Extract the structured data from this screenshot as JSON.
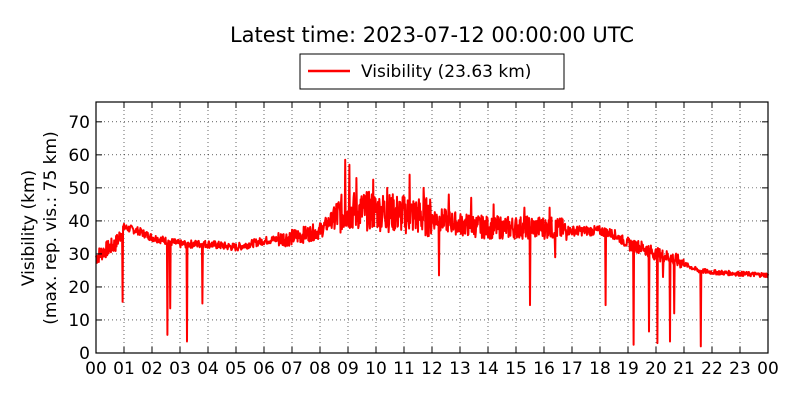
{
  "chart_data": {
    "type": "line",
    "title": "Latest time: 2023-07-12 00:00:00 UTC",
    "ylabel_line1": "Visibility (km)",
    "ylabel_line2": "(max. rep. vis.: 75 km)",
    "xlabel": "",
    "xlim": [
      0,
      24
    ],
    "ylim": [
      0,
      76
    ],
    "grid": true,
    "legend_position": "top-center",
    "x_ticks": [
      "00",
      "01",
      "02",
      "03",
      "04",
      "05",
      "06",
      "07",
      "08",
      "09",
      "10",
      "11",
      "12",
      "13",
      "14",
      "15",
      "16",
      "17",
      "18",
      "19",
      "20",
      "21",
      "22",
      "23",
      "00"
    ],
    "y_ticks": [
      "0",
      "10",
      "20",
      "30",
      "40",
      "50",
      "60",
      "70"
    ],
    "series": [
      {
        "name": "Visibility (23.63 km)",
        "color": "#ff0000",
        "base_profile": {
          "hours": [
            0,
            0.3,
            0.7,
            1.0,
            1.5,
            2.0,
            2.5,
            3.0,
            4.0,
            5.0,
            6.0,
            7.0,
            8.0,
            8.5,
            9.0,
            10.0,
            11.0,
            12.0,
            13.0,
            14.0,
            15.0,
            16.0,
            17.0,
            18.0,
            18.5,
            19.0,
            19.5,
            20.0,
            20.5,
            21.0,
            21.5,
            22.0,
            23.0,
            24.0
          ],
          "values": [
            29,
            31,
            33,
            38,
            37,
            35,
            34,
            33,
            33,
            32,
            34,
            35,
            37,
            41,
            43,
            43,
            42,
            41,
            39,
            38,
            38,
            38,
            37,
            37,
            36,
            33,
            32,
            30,
            29,
            27,
            25,
            24.5,
            24,
            23.6
          ]
        },
        "dips": [
          {
            "hour": 0.95,
            "value": 15.5
          },
          {
            "hour": 2.55,
            "value": 5.5
          },
          {
            "hour": 2.65,
            "value": 13.5
          },
          {
            "hour": 3.25,
            "value": 3.5
          },
          {
            "hour": 3.8,
            "value": 15
          },
          {
            "hour": 12.25,
            "value": 23.5
          },
          {
            "hour": 15.5,
            "value": 14.5
          },
          {
            "hour": 16.4,
            "value": 29
          },
          {
            "hour": 18.2,
            "value": 14.5
          },
          {
            "hour": 19.2,
            "value": 2.5
          },
          {
            "hour": 19.75,
            "value": 6.5
          },
          {
            "hour": 20.05,
            "value": 3
          },
          {
            "hour": 20.25,
            "value": 23
          },
          {
            "hour": 20.5,
            "value": 3.5
          },
          {
            "hour": 20.65,
            "value": 12
          },
          {
            "hour": 21.6,
            "value": 2
          }
        ],
        "spikes": [
          {
            "hour": 8.9,
            "value": 58.5
          },
          {
            "hour": 9.05,
            "value": 57
          },
          {
            "hour": 9.3,
            "value": 53
          },
          {
            "hour": 9.9,
            "value": 52.5
          },
          {
            "hour": 10.4,
            "value": 50
          },
          {
            "hour": 11.2,
            "value": 54
          },
          {
            "hour": 11.7,
            "value": 50
          },
          {
            "hour": 12.6,
            "value": 48
          },
          {
            "hour": 13.4,
            "value": 47
          },
          {
            "hour": 14.2,
            "value": 45
          },
          {
            "hour": 15.3,
            "value": 44
          },
          {
            "hour": 16.2,
            "value": 44
          }
        ]
      }
    ]
  }
}
